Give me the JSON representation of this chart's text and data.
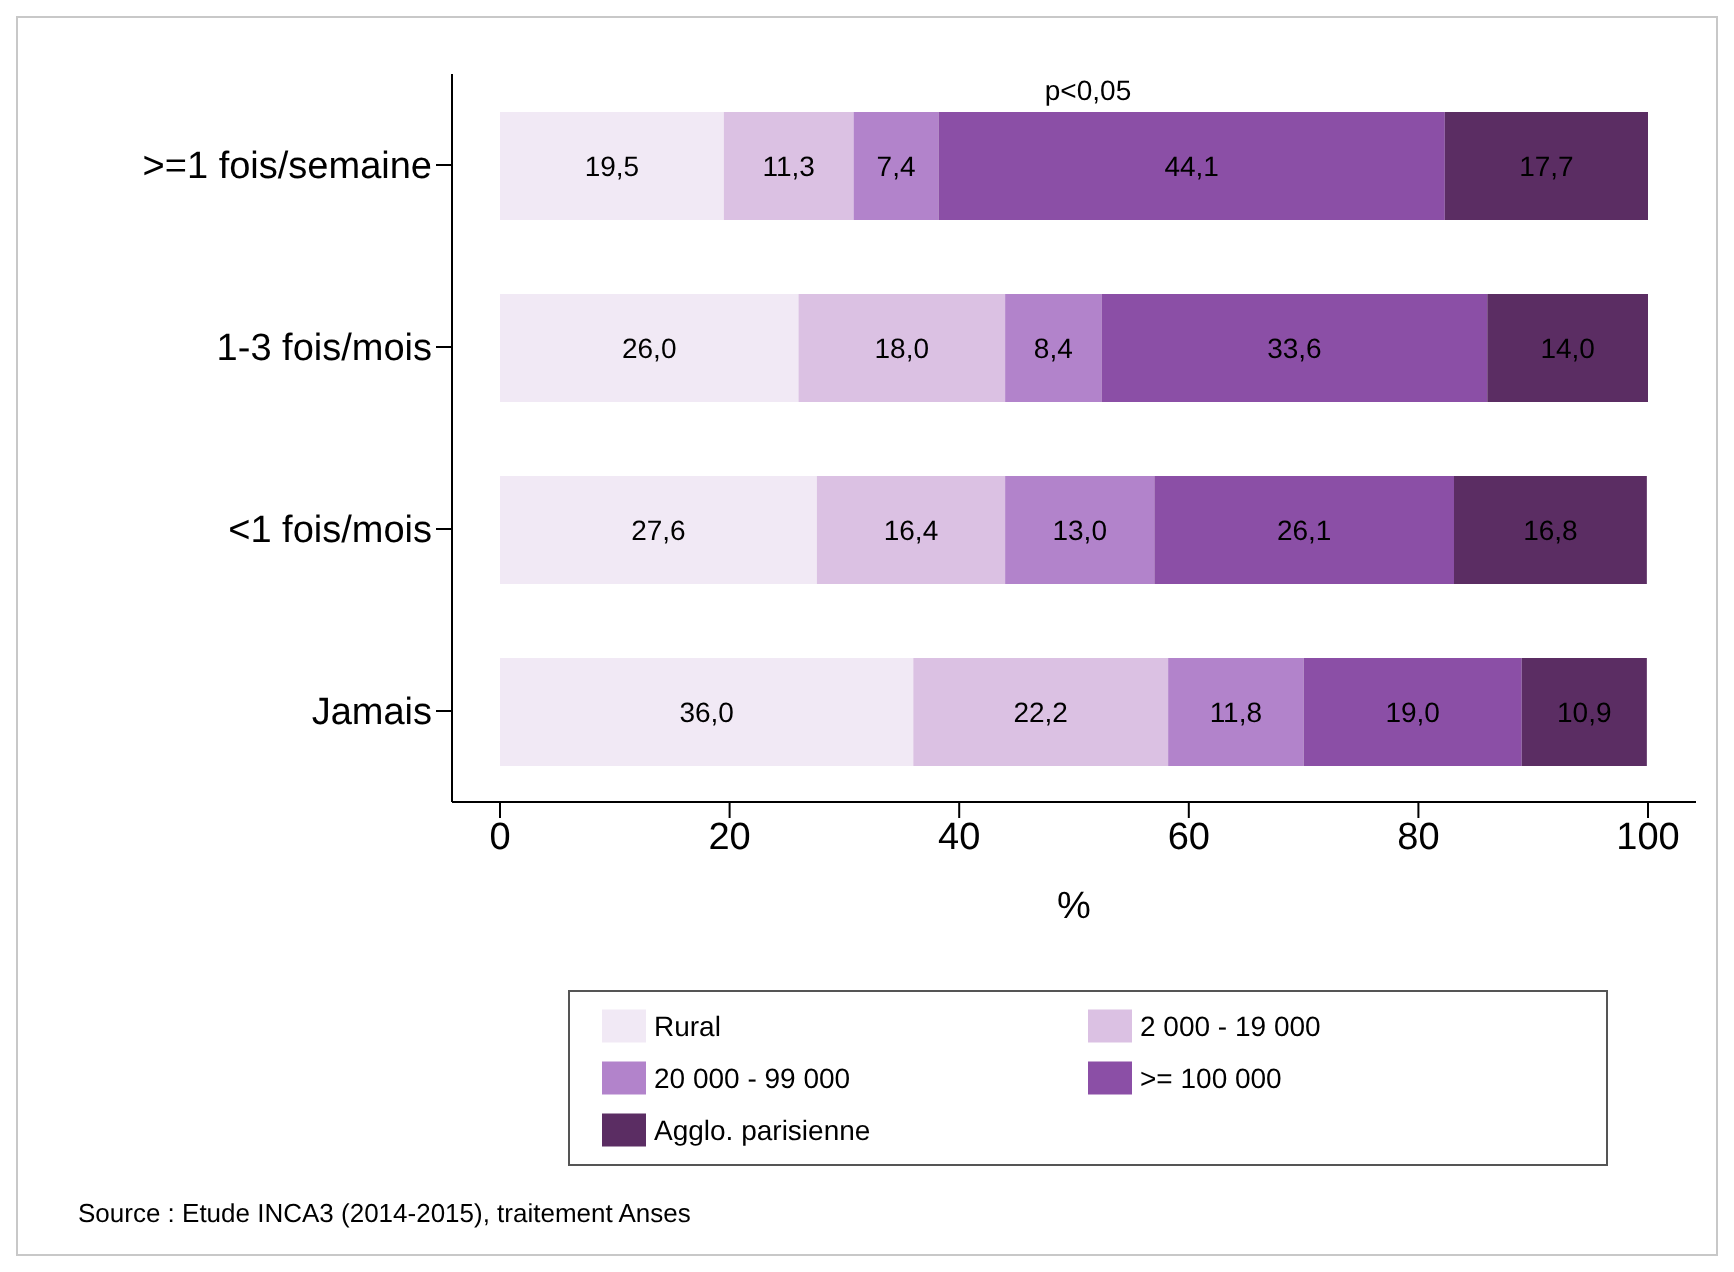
{
  "chart_data": {
    "type": "bar",
    "orientation": "horizontal",
    "stacked": true,
    "xlabel": "%",
    "categories": [
      ">=1 fois/semaine",
      "1-3 fois/mois",
      "<1 fois/mois",
      "Jamais"
    ],
    "series": [
      {
        "name": "Rural",
        "color": "#f1e9f5",
        "values": [
          19.5,
          26.0,
          27.6,
          36.0
        ]
      },
      {
        "name": "2 000 - 19 000",
        "color": "#dbc1e3",
        "values": [
          11.3,
          18.0,
          16.4,
          22.2
        ]
      },
      {
        "name": "20 000 - 99 000",
        "color": "#b283cb",
        "values": [
          7.4,
          8.4,
          13.0,
          11.8
        ]
      },
      {
        "name": ">= 100 000",
        "color": "#8b4fa6",
        "values": [
          44.1,
          33.6,
          26.1,
          19.0
        ]
      },
      {
        "name": "Agglo. parisienne",
        "color": "#5b2d63",
        "values": [
          17.7,
          14.0,
          16.8,
          10.9
        ]
      }
    ],
    "value_labels": [
      [
        "19,5",
        "26,0",
        "27,6",
        "36,0"
      ],
      [
        "11,3",
        "18,0",
        "16,4",
        "22,2"
      ],
      [
        "7,4",
        "8,4",
        "13,0",
        "11,8"
      ],
      [
        "44,1",
        "33,6",
        "26,1",
        "19,0"
      ],
      [
        "17,7",
        "14,0",
        "16,8",
        "10,9"
      ]
    ],
    "xlim": [
      0,
      100
    ],
    "xticks": [
      0,
      20,
      40,
      60,
      80,
      100
    ],
    "grid": false,
    "legend": "bottom",
    "annotations": [
      "p<0,05",
      "Source : Etude INCA3 (2014-2015), traitement Anses"
    ]
  }
}
